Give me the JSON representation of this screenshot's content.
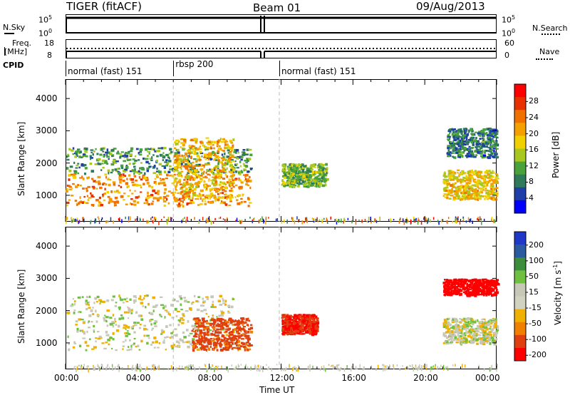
{
  "header": {
    "left_title": "TIGER (fitACF)",
    "center_title": "Beam 01",
    "right_title": "09/Aug/2013"
  },
  "top_panels": {
    "nsky": {
      "label": "N.Sky",
      "ticks": [
        "10^5",
        "10^0"
      ]
    },
    "nsearch": {
      "label": "N.Search",
      "ticks": [
        "10^5",
        "10^0"
      ]
    },
    "freq": {
      "label_line1": "Freq.",
      "label_line2": "[MHz]",
      "ticks": [
        "18",
        "8"
      ]
    },
    "nave": {
      "label": "Nave",
      "ticks": [
        "60",
        "0"
      ]
    },
    "cpid": {
      "label": "CPID",
      "segments": [
        {
          "name": "normal (fast) 151",
          "start_hour": 0,
          "end_hour": 6
        },
        {
          "name": "rbsp 200",
          "start_hour": 6,
          "end_hour": 11.9
        },
        {
          "name": "normal (fast) 151",
          "start_hour": 11.9,
          "end_hour": 24
        }
      ]
    }
  },
  "colors": {
    "power_scale": [
      "#0000ff",
      "#1f3fa8",
      "#2e7a5a",
      "#4aa33a",
      "#a8c820",
      "#f0d000",
      "#f4a000",
      "#f07000",
      "#e83000",
      "#ff0000"
    ],
    "velocity_scale": [
      "#2038c8",
      "#2a5aa0",
      "#3c8e3c",
      "#70c040",
      "#c8c8b8",
      "#d2d2c0",
      "#f0b000",
      "#f08000",
      "#e04010",
      "#ff0000"
    ]
  },
  "chart_data": [
    {
      "type": "heatmap",
      "name_hint": "power",
      "ylabel": "Slant Range [km]",
      "y_ticks": [
        "1000",
        "2000",
        "3000",
        "4000"
      ],
      "ylim": [
        180,
        4600
      ],
      "xlim_hours": [
        0,
        24
      ],
      "colorbar_label": "Power [dB]",
      "colorbar_ticks": [
        "28",
        "24",
        "20",
        "16",
        "12",
        "8",
        "4"
      ],
      "clim": [
        0,
        32
      ],
      "echo_regions": [
        {
          "t": [
            0.0,
            10.3
          ],
          "r": [
            700,
            1700
          ],
          "value_db": 22
        },
        {
          "t": [
            0.0,
            10.3
          ],
          "r": [
            1700,
            2500
          ],
          "value_db": 10
        },
        {
          "t": [
            6.0,
            9.3
          ],
          "r": [
            900,
            2800
          ],
          "value_db": 20
        },
        {
          "t": [
            12.0,
            14.5
          ],
          "r": [
            1300,
            2000
          ],
          "value_db": 12
        },
        {
          "t": [
            21.0,
            24.0
          ],
          "r": [
            900,
            1800
          ],
          "value_db": 18
        },
        {
          "t": [
            21.2,
            24.0
          ],
          "r": [
            2200,
            3100
          ],
          "value_db": 8
        }
      ]
    },
    {
      "type": "heatmap",
      "name_hint": "velocity",
      "ylabel": "Slant Range [km]",
      "y_ticks": [
        "1000",
        "2000",
        "3000",
        "4000"
      ],
      "ylim": [
        180,
        4600
      ],
      "xlim_hours": [
        0,
        24
      ],
      "xlabel": "Time UT",
      "x_ticks": [
        "00:00",
        "04:00",
        "08:00",
        "12:00",
        "16:00",
        "20:00",
        "00:00"
      ],
      "colorbar_label": "Velocity [m s^-1]",
      "colorbar_ticks": [
        "200",
        "100",
        "50",
        "15",
        "-15",
        "-50",
        "-100",
        "-200"
      ],
      "echo_regions": [
        {
          "t": [
            0.0,
            9.3
          ],
          "r": [
            800,
            2500
          ],
          "value_ms": 0
        },
        {
          "t": [
            7.0,
            10.3
          ],
          "r": [
            800,
            1800
          ],
          "value_ms": -120
        },
        {
          "t": [
            12.0,
            14.0
          ],
          "r": [
            1300,
            1900
          ],
          "value_ms": -150
        },
        {
          "t": [
            21.0,
            24.0
          ],
          "r": [
            1000,
            1800
          ],
          "value_ms": 0
        },
        {
          "t": [
            21.0,
            24.0
          ],
          "r": [
            2500,
            3000
          ],
          "value_ms": -200
        }
      ]
    }
  ]
}
